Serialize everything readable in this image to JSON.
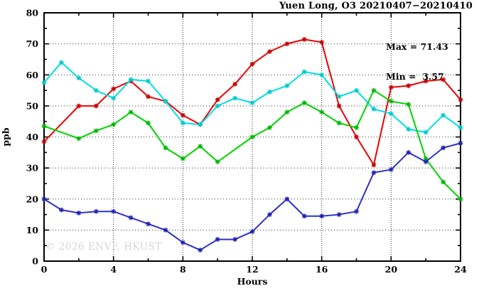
{
  "header": {
    "title": "Yuen Long, O3 20210407−20210410"
  },
  "annotations": {
    "max": "Max = 71.43",
    "min": "Min =  3.57"
  },
  "watermark": {
    "text": "© 2026 ENVF, HKUST",
    "color": "#d6d6d6"
  },
  "chart_data": {
    "type": "line",
    "title": "Yuen Long, O3 20210407−20210410",
    "xlabel": "Hours",
    "ylabel": "ppb",
    "xlim": [
      0,
      24
    ],
    "ylim": [
      0,
      80
    ],
    "xticks_major": [
      0,
      4,
      8,
      12,
      16,
      20,
      24
    ],
    "xticks_minor": [
      2,
      6,
      10,
      14,
      18,
      22
    ],
    "yticks_major": [
      0,
      10,
      20,
      30,
      40,
      50,
      60,
      70,
      80
    ],
    "yticks_minor": [
      5,
      15,
      25,
      35,
      45,
      55,
      65,
      75
    ],
    "grid": "dotted lines at major ticks, boxed frame, no legend",
    "stats": {
      "max": 71.43,
      "min": 3.57
    },
    "x": [
      0,
      1,
      2,
      3,
      4,
      5,
      6,
      7,
      8,
      9,
      10,
      11,
      12,
      13,
      14,
      15,
      16,
      17,
      18,
      19,
      20,
      21,
      22,
      23,
      24
    ],
    "series": [
      {
        "name": "series-red",
        "color": "#f00000",
        "marker_color": "#c00000",
        "values": [
          38.5,
          null,
          50,
          50,
          55.5,
          58,
          53,
          51.5,
          47,
          44,
          52,
          57,
          63.5,
          67.5,
          70,
          71.43,
          70.5,
          50,
          40,
          31,
          56,
          56.5,
          58,
          58.5,
          52
        ]
      },
      {
        "name": "series-cyan",
        "color": "#00e0e0",
        "marker_color": "#00c8c8",
        "values": [
          57.5,
          64,
          59,
          55,
          52.5,
          58.5,
          58,
          51.5,
          44.5,
          44,
          50,
          52.5,
          51,
          54.5,
          56.5,
          61,
          60,
          53,
          55,
          49,
          47.5,
          42.5,
          41.5,
          47,
          43
        ]
      },
      {
        "name": "series-green",
        "color": "#00d400",
        "marker_color": "#00b400",
        "values": [
          43.5,
          null,
          39.5,
          42,
          44,
          48,
          44.5,
          36.5,
          33,
          37,
          32,
          null,
          40,
          43,
          48,
          51,
          48,
          44.5,
          43,
          55,
          51.5,
          50.5,
          33,
          25.5,
          20
        ]
      },
      {
        "name": "series-blue",
        "color": "#3030cc",
        "marker_color": "#2020b0",
        "values": [
          20,
          16.5,
          15.5,
          16,
          16,
          14,
          12,
          10,
          6,
          3.57,
          7,
          7,
          9.5,
          15,
          20,
          14.5,
          14.5,
          15,
          16,
          28.5,
          29.5,
          35,
          32,
          36.5,
          38
        ]
      }
    ]
  }
}
